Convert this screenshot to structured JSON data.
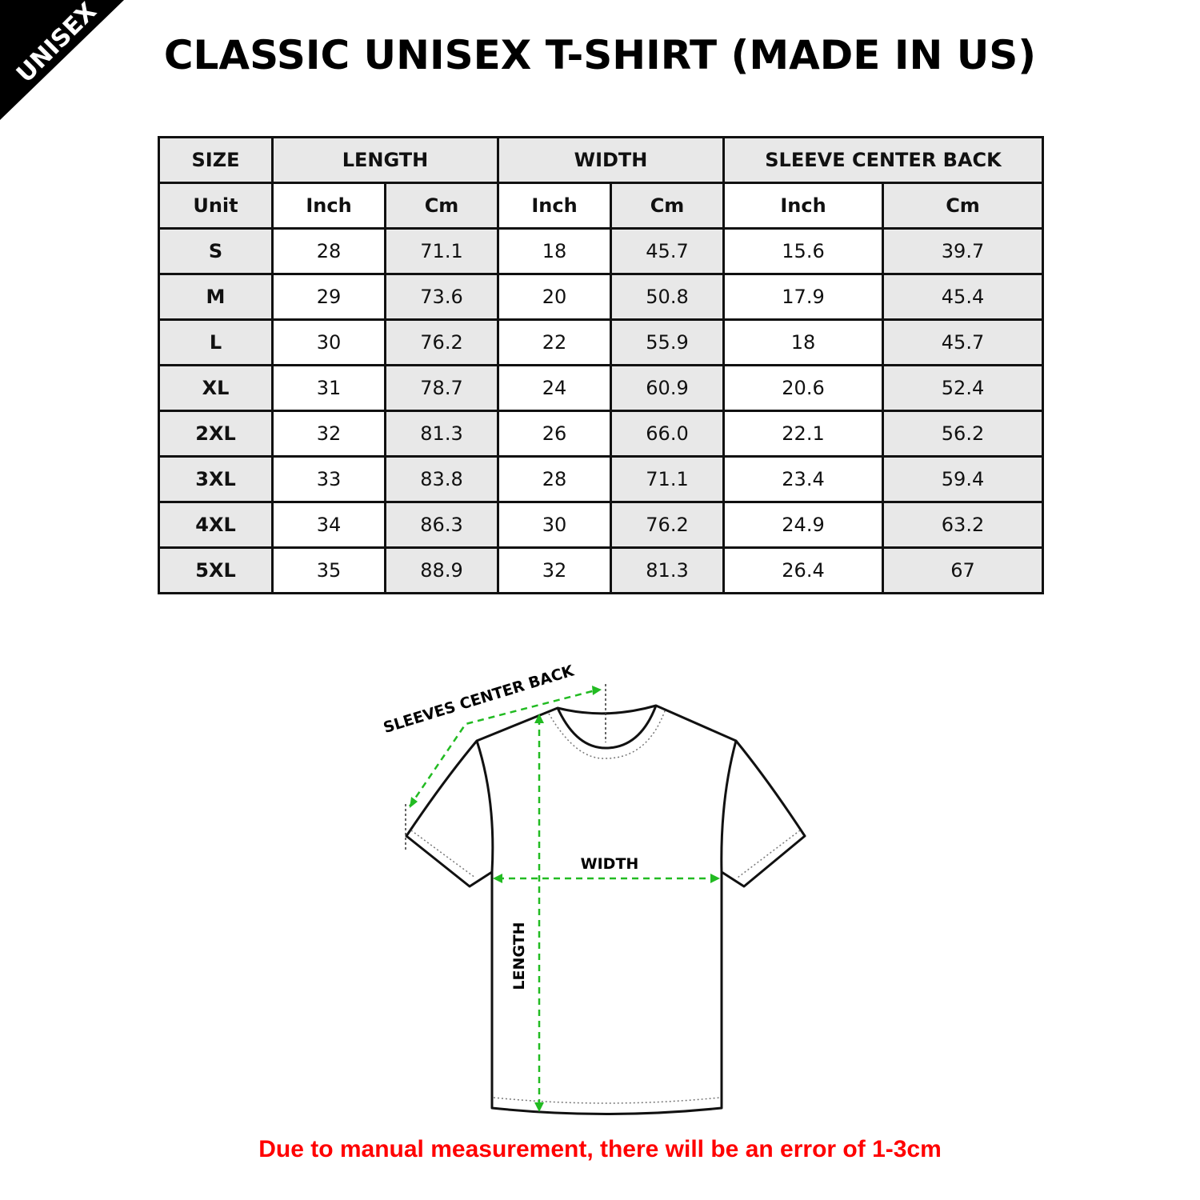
{
  "badge": "UNISEX",
  "title": "CLASSIC UNISEX T-SHIRT (MADE IN US)",
  "table": {
    "groups": [
      "SIZE",
      "LENGTH",
      "WIDTH",
      "SLEEVE CENTER BACK"
    ],
    "units": [
      "Unit",
      "Inch",
      "Cm",
      "Inch",
      "Cm",
      "Inch",
      "Cm"
    ],
    "rows": [
      [
        "S",
        "28",
        "71.1",
        "18",
        "45.7",
        "15.6",
        "39.7"
      ],
      [
        "M",
        "29",
        "73.6",
        "20",
        "50.8",
        "17.9",
        "45.4"
      ],
      [
        "L",
        "30",
        "76.2",
        "22",
        "55.9",
        "18",
        "45.7"
      ],
      [
        "XL",
        "31",
        "78.7",
        "24",
        "60.9",
        "20.6",
        "52.4"
      ],
      [
        "2XL",
        "32",
        "81.3",
        "26",
        "66.0",
        "22.1",
        "56.2"
      ],
      [
        "3XL",
        "33",
        "83.8",
        "28",
        "71.1",
        "23.4",
        "59.4"
      ],
      [
        "4XL",
        "34",
        "86.3",
        "30",
        "76.2",
        "24.9",
        "63.2"
      ],
      [
        "5XL",
        "35",
        "88.9",
        "32",
        "81.3",
        "26.4",
        "67"
      ]
    ]
  },
  "diagram": {
    "sleeve_label": "SLEEVES CENTER BACK",
    "width_label": "WIDTH",
    "length_label": "LENGTH",
    "arrow_color": "#22bb22"
  },
  "note": "Due to manual measurement, there will be an error of 1-3cm",
  "colors": {
    "note": "#ff0000",
    "cell_gray": "#e8e8e8"
  }
}
